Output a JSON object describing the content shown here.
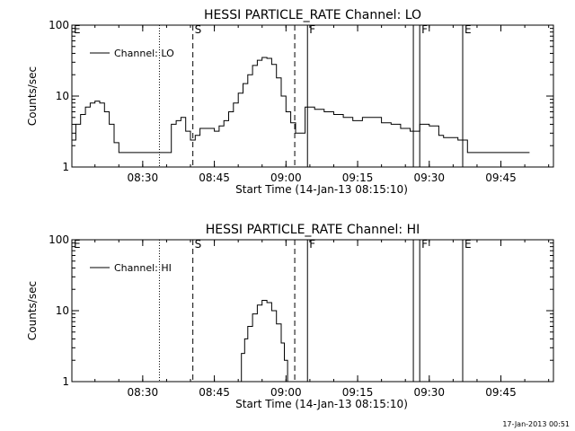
{
  "footer_timestamp": "17-Jan-2013 00:51",
  "chart_data": [
    {
      "type": "line",
      "title": "HESSI PARTICLE_RATE Channel: LO",
      "xlabel": "Start Time (14-Jan-13 08:15:10)",
      "ylabel": "Counts/sec",
      "yscale": "log",
      "ylim": [
        1,
        100
      ],
      "xlim": [
        "08:15:10",
        "09:56:00"
      ],
      "x_ticks": [
        "08:30",
        "08:45",
        "09:00",
        "09:15",
        "09:30",
        "09:45"
      ],
      "y_ticks": [
        "1",
        "10",
        "100"
      ],
      "legend": "top-left",
      "series": [
        {
          "name": "Channel: LO",
          "x": [
            "08:15:10",
            "08:16:00",
            "08:17:00",
            "08:18:00",
            "08:19:00",
            "08:20:00",
            "08:21:00",
            "08:22:00",
            "08:23:00",
            "08:24:00",
            "08:25:00",
            "08:26:00",
            "08:27:00",
            "08:28:00",
            "08:29:00",
            "08:30:00",
            "08:31:00",
            "08:32:00",
            "08:33:00",
            "08:34:00",
            "08:35:00",
            "08:36:00",
            "08:37:00",
            "08:38:00",
            "08:39:00",
            "08:40:00",
            "08:41:00",
            "08:42:00",
            "08:43:00",
            "08:44:00",
            "08:45:00",
            "08:46:00",
            "08:47:00",
            "08:48:00",
            "08:49:00",
            "08:50:00",
            "08:51:00",
            "08:52:00",
            "08:53:00",
            "08:54:00",
            "08:55:00",
            "08:56:00",
            "08:57:00",
            "08:58:00",
            "08:59:00",
            "09:00:00",
            "09:01:00",
            "09:02:00",
            "09:03:00",
            "09:04:00",
            "09:06:00",
            "09:08:00",
            "09:10:00",
            "09:12:00",
            "09:14:00",
            "09:16:00",
            "09:18:00",
            "09:20:00",
            "09:22:00",
            "09:24:00",
            "09:26:00",
            "09:28:00",
            "09:30:00",
            "09:32:00",
            "09:33:00",
            "09:35:00",
            "09:36:00",
            "09:38:00",
            "09:40:00",
            "09:42:00",
            "09:44:00",
            "09:46:00",
            "09:48:00",
            "09:50:00",
            "09:51:00"
          ],
          "y": [
            2.4,
            4,
            5.5,
            7,
            8,
            8.5,
            8,
            6,
            4,
            2.2,
            1.6,
            1.6,
            1.6,
            1.6,
            1.6,
            1.6,
            1.6,
            1.6,
            1.6,
            1.6,
            1.6,
            4,
            4.5,
            5,
            3.2,
            2.4,
            2.8,
            3.5,
            3.5,
            3.5,
            3.2,
            3.8,
            4.5,
            6,
            8,
            11,
            15,
            20,
            27,
            32,
            35,
            34,
            28,
            18,
            10,
            6,
            4.2,
            3,
            3,
            7,
            6.5,
            6,
            5.5,
            5,
            4.5,
            5,
            5,
            4.2,
            4,
            3.5,
            3.2,
            4,
            3.8,
            2.8,
            2.6,
            2.6,
            2.4,
            1.6,
            1.6,
            1.6,
            1.6,
            1.6,
            1.6,
            1.6,
            1.6
          ]
        }
      ],
      "annotations": [
        {
          "label": "E",
          "time": "08:15:10",
          "style": "dotted"
        },
        {
          "label": "",
          "time": "08:33:30",
          "style": "dotted"
        },
        {
          "label": "S",
          "time": "08:40:30",
          "style": "dashed"
        },
        {
          "label": "",
          "time": "09:01:50",
          "style": "dashed"
        },
        {
          "label": "F",
          "time": "09:04:30",
          "style": "solid"
        },
        {
          "label": "",
          "time": "09:26:40",
          "style": "solid"
        },
        {
          "label": "F",
          "time": "09:28:00",
          "style": "solid"
        },
        {
          "label": "E",
          "time": "09:37:00",
          "style": "solid"
        },
        {
          "label": "",
          "time": "09:56:00",
          "style": "dotted"
        }
      ]
    },
    {
      "type": "line",
      "title": "HESSI PARTICLE_RATE Channel: HI",
      "xlabel": "Start Time (14-Jan-13 08:15:10)",
      "ylabel": "Counts/sec",
      "yscale": "log",
      "ylim": [
        1,
        100
      ],
      "xlim": [
        "08:15:10",
        "09:56:00"
      ],
      "x_ticks": [
        "08:30",
        "08:45",
        "09:00",
        "09:15",
        "09:30",
        "09:45"
      ],
      "y_ticks": [
        "1",
        "10",
        "100"
      ],
      "legend": "top-left",
      "series": [
        {
          "name": "Channel: HI",
          "x": [
            "08:50:00",
            "08:50:40",
            "08:51:20",
            "08:52:00",
            "08:53:00",
            "08:54:00",
            "08:55:00",
            "08:56:00",
            "08:57:00",
            "08:58:00",
            "08:59:00",
            "08:59:40",
            "09:00:20"
          ],
          "y": [
            1,
            2.5,
            4,
            6,
            9,
            12,
            14,
            13,
            10,
            6.5,
            3.5,
            2,
            1
          ]
        }
      ],
      "annotations": [
        {
          "label": "E",
          "time": "08:15:10",
          "style": "dotted"
        },
        {
          "label": "",
          "time": "08:33:30",
          "style": "dotted"
        },
        {
          "label": "S",
          "time": "08:40:30",
          "style": "dashed"
        },
        {
          "label": "",
          "time": "09:01:50",
          "style": "dashed"
        },
        {
          "label": "F",
          "time": "09:04:30",
          "style": "solid"
        },
        {
          "label": "",
          "time": "09:26:40",
          "style": "solid"
        },
        {
          "label": "F",
          "time": "09:28:00",
          "style": "solid"
        },
        {
          "label": "E",
          "time": "09:37:00",
          "style": "solid"
        },
        {
          "label": "",
          "time": "09:56:00",
          "style": "dotted"
        }
      ]
    }
  ]
}
